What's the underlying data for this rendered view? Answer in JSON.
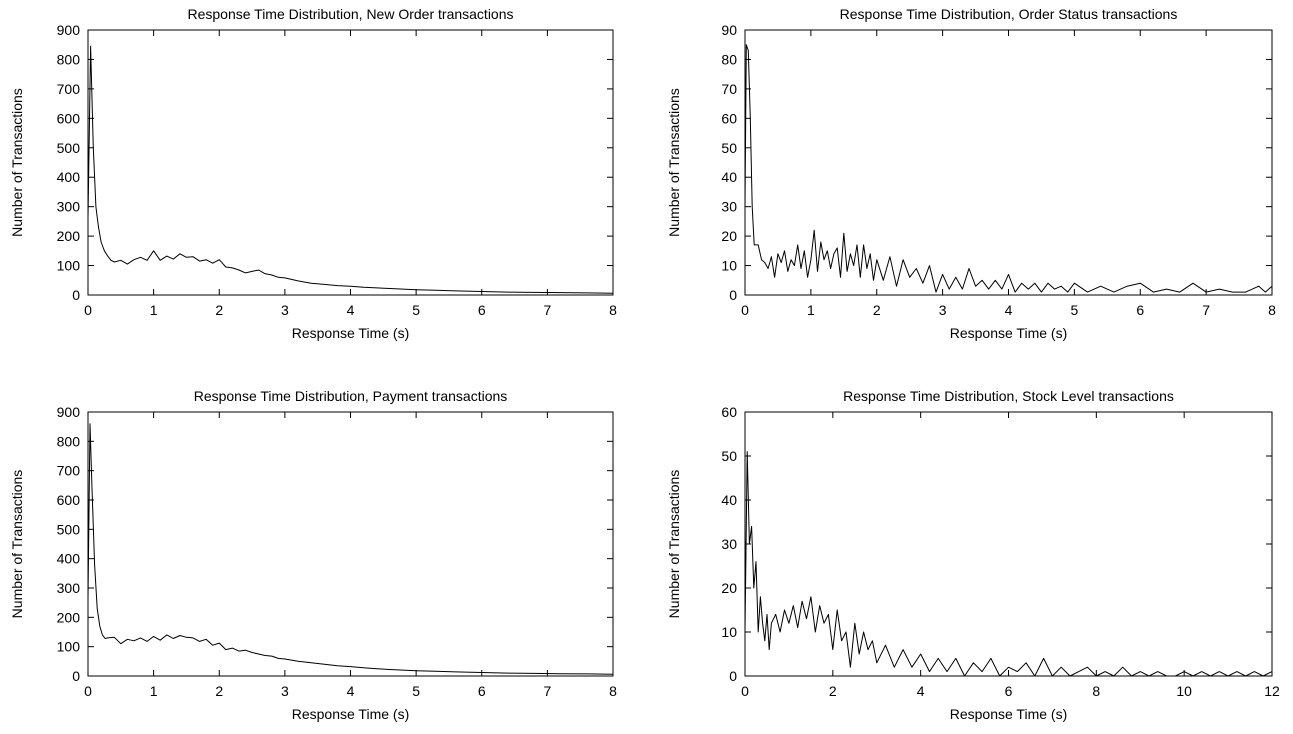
{
  "chart_data": [
    {
      "type": "line",
      "title": "Response Time Distribution, New Order transactions",
      "xlabel": "Response Time (s)",
      "ylabel": "Number of Transactions",
      "xlim": [
        0,
        8
      ],
      "ylim": [
        0,
        900
      ],
      "xticks": [
        0,
        1,
        2,
        3,
        4,
        5,
        6,
        7,
        8
      ],
      "yticks": [
        0,
        100,
        200,
        300,
        400,
        500,
        600,
        700,
        800,
        900
      ],
      "grid": false,
      "series": [
        {
          "x": [
            0,
            0.04,
            0.08,
            0.12,
            0.16,
            0.2,
            0.25,
            0.3,
            0.35,
            0.4,
            0.5,
            0.6,
            0.7,
            0.8,
            0.9,
            1.0,
            1.1,
            1.2,
            1.3,
            1.4,
            1.5,
            1.6,
            1.7,
            1.8,
            1.9,
            2.0,
            2.1,
            2.2,
            2.3,
            2.4,
            2.5,
            2.6,
            2.7,
            2.8,
            2.9,
            3.0,
            3.2,
            3.4,
            3.6,
            3.8,
            4.0,
            4.2,
            4.4,
            4.6,
            4.8,
            5.0,
            5.3,
            5.6,
            6.0,
            6.4,
            6.8,
            7.2,
            7.6,
            8.0
          ],
          "y": [
            260,
            845,
            500,
            300,
            230,
            180,
            150,
            132,
            118,
            112,
            118,
            105,
            120,
            128,
            118,
            150,
            118,
            132,
            122,
            140,
            128,
            130,
            115,
            120,
            108,
            120,
            95,
            92,
            85,
            75,
            80,
            85,
            72,
            68,
            60,
            58,
            48,
            40,
            36,
            32,
            30,
            26,
            24,
            22,
            20,
            18,
            16,
            14,
            12,
            10,
            9,
            8,
            7,
            6
          ]
        }
      ]
    },
    {
      "type": "line",
      "title": "Response Time Distribution, Order Status transactions",
      "xlabel": "Response Time (s)",
      "ylabel": "Number of Transactions",
      "xlim": [
        0,
        8
      ],
      "ylim": [
        0,
        90
      ],
      "xticks": [
        0,
        1,
        2,
        3,
        4,
        5,
        6,
        7,
        8
      ],
      "yticks": [
        0,
        10,
        20,
        30,
        40,
        50,
        60,
        70,
        80,
        90
      ],
      "grid": false,
      "series": [
        {
          "x": [
            0,
            0.02,
            0.05,
            0.08,
            0.11,
            0.14,
            0.2,
            0.25,
            0.3,
            0.35,
            0.4,
            0.45,
            0.5,
            0.55,
            0.6,
            0.65,
            0.7,
            0.75,
            0.8,
            0.85,
            0.9,
            0.95,
            1.0,
            1.05,
            1.1,
            1.15,
            1.2,
            1.25,
            1.3,
            1.35,
            1.4,
            1.45,
            1.5,
            1.55,
            1.6,
            1.65,
            1.7,
            1.75,
            1.8,
            1.85,
            1.9,
            1.95,
            2.0,
            2.1,
            2.2,
            2.3,
            2.4,
            2.5,
            2.6,
            2.7,
            2.8,
            2.9,
            3.0,
            3.1,
            3.2,
            3.3,
            3.4,
            3.5,
            3.6,
            3.7,
            3.8,
            3.9,
            4.0,
            4.1,
            4.2,
            4.3,
            4.4,
            4.5,
            4.6,
            4.7,
            4.8,
            4.9,
            5.0,
            5.2,
            5.4,
            5.6,
            5.8,
            6.0,
            6.2,
            6.4,
            6.6,
            6.8,
            7.0,
            7.2,
            7.4,
            7.6,
            7.8,
            7.9,
            8.0
          ],
          "y": [
            30,
            85,
            83,
            60,
            30,
            17,
            17,
            12,
            11,
            9,
            13,
            6,
            14,
            11,
            15,
            8,
            12,
            10,
            17,
            9,
            15,
            6,
            12,
            22,
            8,
            18,
            12,
            15,
            9,
            14,
            16,
            6,
            21,
            8,
            14,
            10,
            17,
            6,
            17,
            9,
            14,
            5,
            12,
            5,
            13,
            3,
            12,
            6,
            9,
            4,
            10,
            1,
            7,
            2,
            6,
            2,
            9,
            3,
            5,
            2,
            5,
            2,
            7,
            1,
            4,
            2,
            4,
            1,
            4,
            2,
            3,
            1,
            4,
            1,
            3,
            1,
            3,
            4,
            1,
            2,
            1,
            4,
            1,
            2,
            1,
            1,
            3,
            1,
            3
          ]
        }
      ]
    },
    {
      "type": "line",
      "title": "Response Time Distribution, Payment transactions",
      "xlabel": "Response Time (s)",
      "ylabel": "Number of Transactions",
      "xlim": [
        0,
        8
      ],
      "ylim": [
        0,
        900
      ],
      "xticks": [
        0,
        1,
        2,
        3,
        4,
        5,
        6,
        7,
        8
      ],
      "yticks": [
        0,
        100,
        200,
        300,
        400,
        500,
        600,
        700,
        800,
        900
      ],
      "grid": false,
      "series": [
        {
          "x": [
            0,
            0.03,
            0.06,
            0.1,
            0.14,
            0.18,
            0.22,
            0.26,
            0.3,
            0.4,
            0.5,
            0.6,
            0.7,
            0.8,
            0.9,
            1.0,
            1.1,
            1.2,
            1.3,
            1.4,
            1.5,
            1.6,
            1.7,
            1.8,
            1.9,
            2.0,
            2.1,
            2.2,
            2.3,
            2.4,
            2.5,
            2.6,
            2.7,
            2.8,
            2.9,
            3.0,
            3.2,
            3.4,
            3.6,
            3.8,
            4.0,
            4.2,
            4.4,
            4.6,
            4.8,
            5.0,
            5.3,
            5.6,
            6.0,
            6.4,
            6.8,
            7.2,
            7.6,
            8.0
          ],
          "y": [
            260,
            860,
            650,
            380,
            230,
            170,
            140,
            128,
            130,
            132,
            110,
            125,
            120,
            130,
            118,
            135,
            122,
            140,
            128,
            138,
            132,
            130,
            118,
            125,
            105,
            112,
            90,
            95,
            85,
            88,
            80,
            75,
            70,
            68,
            60,
            58,
            50,
            45,
            40,
            35,
            32,
            28,
            25,
            22,
            20,
            18,
            16,
            14,
            12,
            10,
            9,
            8,
            7,
            6
          ]
        }
      ]
    },
    {
      "type": "line",
      "title": "Response Time Distribution, Stock Level transactions",
      "xlabel": "Response Time (s)",
      "ylabel": "Number of Transactions",
      "xlim": [
        0,
        12
      ],
      "ylim": [
        0,
        60
      ],
      "xticks": [
        0,
        2,
        4,
        6,
        8,
        10,
        12
      ],
      "yticks": [
        0,
        10,
        20,
        30,
        40,
        50,
        60
      ],
      "grid": false,
      "series": [
        {
          "x": [
            0,
            0.05,
            0.1,
            0.15,
            0.2,
            0.25,
            0.3,
            0.35,
            0.4,
            0.45,
            0.5,
            0.55,
            0.6,
            0.7,
            0.8,
            0.9,
            1.0,
            1.1,
            1.2,
            1.3,
            1.4,
            1.5,
            1.6,
            1.7,
            1.8,
            1.9,
            2.0,
            2.1,
            2.2,
            2.3,
            2.4,
            2.5,
            2.6,
            2.7,
            2.8,
            2.9,
            3.0,
            3.2,
            3.4,
            3.6,
            3.8,
            4.0,
            4.2,
            4.4,
            4.6,
            4.8,
            5.0,
            5.2,
            5.4,
            5.6,
            5.8,
            6.0,
            6.2,
            6.4,
            6.6,
            6.8,
            7.0,
            7.2,
            7.4,
            7.6,
            7.8,
            8.0,
            8.2,
            8.4,
            8.6,
            8.8,
            9.0,
            9.2,
            9.4,
            9.6,
            9.8,
            10.0,
            10.2,
            10.4,
            10.6,
            10.8,
            11.0,
            11.2,
            11.4,
            11.6,
            11.8,
            12.0
          ],
          "y": [
            10,
            51,
            30,
            34,
            20,
            26,
            10,
            18,
            12,
            8,
            14,
            6,
            12,
            14,
            10,
            15,
            12,
            16,
            11,
            17,
            13,
            18,
            10,
            16,
            12,
            14,
            6,
            15,
            8,
            10,
            2,
            12,
            5,
            10,
            6,
            8,
            3,
            7,
            2,
            6,
            2,
            5,
            1,
            4,
            1,
            4,
            0,
            3,
            1,
            4,
            0,
            2,
            1,
            3,
            0,
            4,
            0,
            2,
            0,
            1,
            2,
            0,
            1,
            0,
            2,
            0,
            1,
            0,
            1,
            0,
            0,
            1,
            0,
            1,
            0,
            1,
            0,
            1,
            0,
            1,
            0,
            1
          ]
        }
      ]
    }
  ]
}
